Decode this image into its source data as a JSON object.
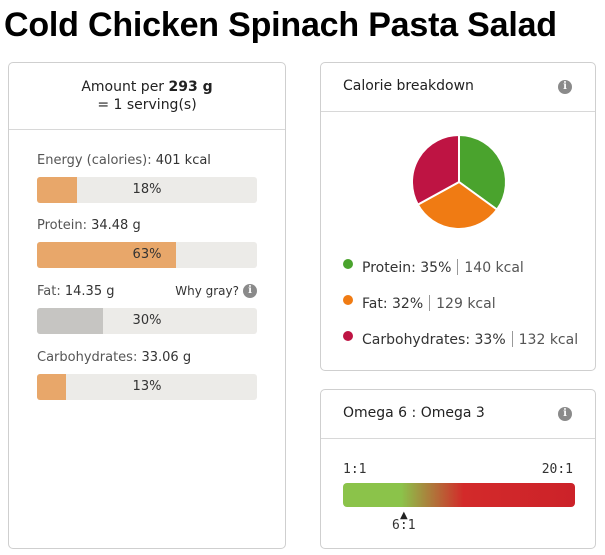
{
  "title": "Cold Chicken Spinach Pasta Salad",
  "serving": {
    "amount_prefix": "Amount per",
    "amount_value": "293 g",
    "serving_text": "= 1 serving(s)"
  },
  "nutrients": [
    {
      "label": "Energy (calories):",
      "value": "401 kcal",
      "percent": 18,
      "percent_text": "18%",
      "color": "#e8a76a"
    },
    {
      "label": "Protein:",
      "value": "34.48 g",
      "percent": 63,
      "percent_text": "63%",
      "color": "#e8a76a"
    },
    {
      "label": "Fat:",
      "value": "14.35 g",
      "percent": 30,
      "percent_text": "30%",
      "color": "#c6c5c2",
      "note": "Why gray?"
    },
    {
      "label": "Carbohydrates:",
      "value": "33.06 g",
      "percent": 13,
      "percent_text": "13%",
      "color": "#e8a76a"
    }
  ],
  "calorie_breakdown": {
    "title": "Calorie breakdown",
    "items": [
      {
        "name": "Protein:",
        "pct_text": "35%",
        "kcal": "140 kcal",
        "pct": 35,
        "color": "#4aa32d"
      },
      {
        "name": "Fat:",
        "pct_text": "32%",
        "kcal": "129 kcal",
        "pct": 32,
        "color": "#f07b13"
      },
      {
        "name": "Carbohydrates:",
        "pct_text": "33%",
        "kcal": "132 kcal",
        "pct": 33,
        "color": "#be1443"
      }
    ]
  },
  "omega": {
    "title": "Omega 6 : Omega 3",
    "min_label": "1:1",
    "max_label": "20:1",
    "value_label": "6:1",
    "marker_glyph": "▲",
    "value": 6,
    "min": 1,
    "max": 20
  },
  "icons": {
    "info": "i"
  },
  "colors": {
    "bar_track": "#ecebe8",
    "accent_orange": "#e8a76a"
  }
}
